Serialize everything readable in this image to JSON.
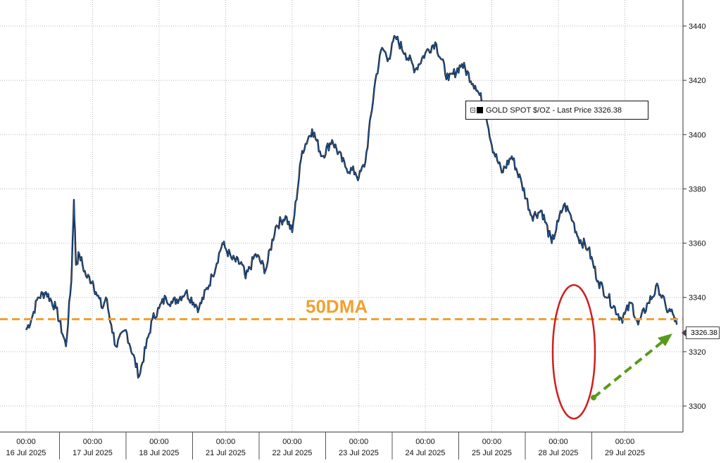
{
  "chart_data": {
    "type": "line",
    "legend": {
      "label": "GOLD SPOT $/OZ - Last Price 3326.38",
      "placement": "top-right"
    },
    "last_price_label": "3326.38",
    "annotation": "50DMA",
    "y_ticks": [
      3300,
      3320,
      3340,
      3360,
      3380,
      3400,
      3420,
      3440
    ],
    "ylim": [
      3288,
      3448
    ],
    "grid": true,
    "x_ticks": [
      {
        "time": "00:00",
        "date": "16 Jul 2025"
      },
      {
        "time": "00:00",
        "date": "17 Jul 2025"
      },
      {
        "time": "00:00",
        "date": "18 Jul 2025"
      },
      {
        "time": "00:00",
        "date": "21 Jul 2025"
      },
      {
        "time": "00:00",
        "date": "22 Jul 2025"
      },
      {
        "time": "00:00",
        "date": "23 Jul 2025"
      },
      {
        "time": "00:00",
        "date": "24 Jul 2025"
      },
      {
        "time": "00:00",
        "date": "25 Jul 2025"
      },
      {
        "time": "00:00",
        "date": "28 Jul 2025"
      },
      {
        "time": "00:00",
        "date": "29 Jul 2025"
      }
    ],
    "dma_level": 3332,
    "series": [
      {
        "name": "GOLD SPOT $/OZ",
        "color": "#1f5fae",
        "x": [
          0,
          0.08,
          0.18,
          0.3,
          0.45,
          0.6,
          0.68,
          0.72,
          0.75,
          0.8,
          0.9,
          1.0,
          1.05,
          1.15,
          1.2,
          1.28,
          1.35,
          1.5,
          1.7,
          1.9,
          2.0,
          2.1,
          2.2,
          2.4,
          2.6,
          2.8,
          2.95,
          3.0,
          3.1,
          3.25,
          3.3,
          3.45,
          3.6,
          3.75,
          3.9,
          4.0,
          4.15,
          4.3,
          4.45,
          4.6,
          4.8,
          4.95,
          5.0,
          5.1,
          5.25,
          5.35,
          5.45,
          5.55,
          5.7,
          5.85,
          6.0,
          6.15,
          6.35,
          6.55,
          6.75,
          6.9,
          7.0,
          7.15,
          7.3,
          7.45,
          7.6,
          7.75,
          7.9,
          8.0,
          8.08,
          8.15,
          8.22,
          8.3,
          8.45,
          8.6,
          8.75,
          8.95,
          9.0,
          9.1,
          9.2,
          9.35,
          9.5,
          9.62,
          9.72,
          9.78
        ],
        "values": [
          3328,
          3332,
          3340,
          3342,
          3336,
          3322,
          3346,
          3376,
          3352,
          3356,
          3348,
          3346,
          3342,
          3336,
          3340,
          3330,
          3322,
          3328,
          3311,
          3332,
          3336,
          3340,
          3338,
          3342,
          3336,
          3348,
          3360,
          3358,
          3354,
          3352,
          3347,
          3356,
          3350,
          3366,
          3370,
          3364,
          3394,
          3402,
          3392,
          3398,
          3388,
          3386,
          3384,
          3390,
          3420,
          3432,
          3428,
          3436,
          3430,
          3424,
          3430,
          3434,
          3420,
          3426,
          3418,
          3410,
          3396,
          3386,
          3392,
          3382,
          3370,
          3372,
          3360,
          3368,
          3374,
          3372,
          3368,
          3362,
          3358,
          3346,
          3340,
          3332,
          3334,
          3338,
          3330,
          3338,
          3344,
          3336,
          3334,
          3330
        ]
      }
    ]
  }
}
